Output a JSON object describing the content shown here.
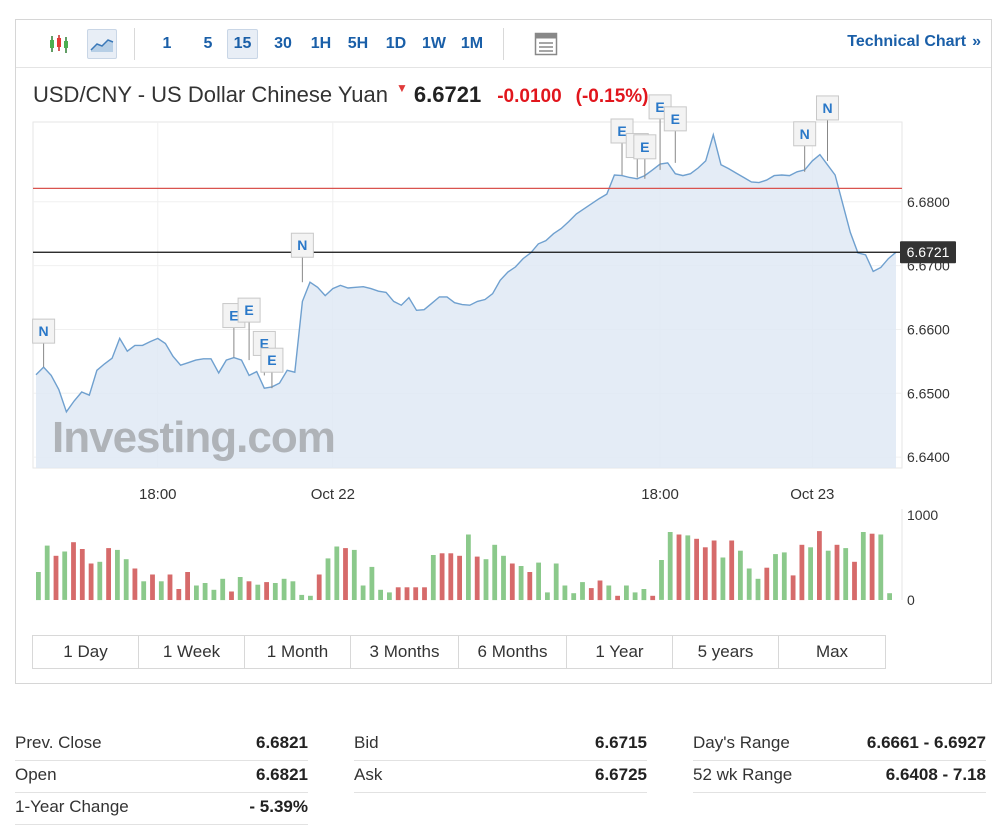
{
  "toolbar": {
    "timeframes": [
      "1",
      "5",
      "15",
      "30",
      "1H",
      "5H",
      "1D",
      "1W",
      "1M"
    ],
    "active_timeframe": "15",
    "technical_chart_label": "Technical Chart",
    "technical_chart_arrow": "»",
    "icons": [
      "candlestick-icon",
      "area-chart-icon",
      "table-view-icon"
    ]
  },
  "quote": {
    "name": "USD/CNY - US Dollar Chinese Yuan",
    "direction_icon": "down-arrow-icon",
    "price": "6.6721",
    "change": "-0.0100",
    "change_pct": "(-0.15%)",
    "colors": {
      "down": "#e1161d",
      "line": "#6fa0cf",
      "fill": "#dfe9f4",
      "prev_close_line": "#d9534f",
      "up_bar": "#8bc98b",
      "down_bar": "#d66a6a"
    }
  },
  "chart_data": {
    "type": "area",
    "y_ticks": [
      "6.6800",
      "6.6700",
      "6.6600",
      "6.6500",
      "6.6400"
    ],
    "ylim": [
      6.6383,
      6.6925
    ],
    "x_ticks": [
      "18:00",
      "Oct 22",
      "18:00",
      "Oct 23"
    ],
    "current_price_label": "6.6721",
    "current_price": 6.6721,
    "reference_line": 6.6821,
    "watermark": "Investing.com",
    "series": [
      {
        "values": [
          6.6529,
          6.6541,
          6.6528,
          6.6506,
          6.6471,
          6.6488,
          6.6502,
          6.6497,
          6.6536,
          6.6546,
          6.6555,
          6.6586,
          6.6566,
          6.6575,
          6.6575,
          6.6581,
          6.6586,
          6.6578,
          6.6558,
          6.6544,
          6.6548,
          6.6552,
          6.6554,
          6.6554,
          6.6532,
          6.6552,
          6.6556,
          6.6552,
          6.6528,
          6.6534,
          6.6508,
          6.651,
          6.6516,
          6.6536,
          6.6533,
          6.6644,
          6.6674,
          6.6666,
          6.6653,
          6.6664,
          6.6669,
          6.6665,
          6.6666,
          6.6667,
          6.6664,
          6.666,
          6.6658,
          6.6644,
          6.6638,
          6.665,
          6.663,
          6.6631,
          6.6641,
          6.6651,
          6.6651,
          6.6642,
          6.6639,
          6.6638,
          6.6644,
          6.6647,
          6.6656,
          6.6677,
          6.669,
          6.6698,
          6.6711,
          6.672,
          6.6734,
          6.6739,
          6.675,
          6.6758,
          6.6769,
          6.6781,
          6.6789,
          6.6797,
          6.6805,
          6.6812,
          6.6842,
          6.6841,
          6.6838,
          6.6836,
          6.6841,
          6.685,
          6.6859,
          6.6861,
          6.6844,
          6.6841,
          6.6844,
          6.6853,
          6.6864,
          6.6905,
          6.6858,
          6.6852,
          6.6845,
          6.6838,
          6.6831,
          6.683,
          6.6834,
          6.6841,
          6.6842,
          6.6841,
          6.6847,
          6.685,
          6.6864,
          6.6874,
          6.6858,
          6.6842,
          6.6797,
          6.6752,
          6.672,
          6.6717,
          6.6691,
          6.6697,
          6.6711,
          6.6721
        ]
      }
    ],
    "event_markers": [
      {
        "label": "N",
        "index": 1,
        "value": 6.6541
      },
      {
        "label": "E",
        "index": 26,
        "value": 6.6556
      },
      {
        "label": "E",
        "index": 28,
        "value": 6.6552
      },
      {
        "label": "E",
        "index": 30,
        "value": 6.6528
      },
      {
        "label": "E",
        "index": 31,
        "value": 6.6508
      },
      {
        "label": "N",
        "index": 35,
        "value": 6.6674
      },
      {
        "label": "E",
        "index": 77,
        "value": 6.6842
      },
      {
        "label": "E",
        "index": 79,
        "value": 6.6838
      },
      {
        "label": "E",
        "index": 80,
        "value": 6.6836
      },
      {
        "label": "E",
        "index": 82,
        "value": 6.685
      },
      {
        "label": "E",
        "index": 84,
        "value": 6.6861
      },
      {
        "label": "N",
        "index": 101,
        "value": 6.6847
      },
      {
        "label": "N",
        "index": 104,
        "value": 6.6864
      }
    ],
    "volume": {
      "y_ticks": [
        "1000",
        "0"
      ],
      "ylim": [
        0,
        1000
      ],
      "bars": [
        {
          "v": 330,
          "up": true
        },
        {
          "v": 640,
          "up": true
        },
        {
          "v": 520,
          "up": false
        },
        {
          "v": 570,
          "up": true
        },
        {
          "v": 680,
          "up": false
        },
        {
          "v": 600,
          "up": false
        },
        {
          "v": 430,
          "up": false
        },
        {
          "v": 450,
          "up": true
        },
        {
          "v": 610,
          "up": false
        },
        {
          "v": 590,
          "up": true
        },
        {
          "v": 480,
          "up": true
        },
        {
          "v": 370,
          "up": false
        },
        {
          "v": 220,
          "up": true
        },
        {
          "v": 300,
          "up": false
        },
        {
          "v": 220,
          "up": true
        },
        {
          "v": 300,
          "up": false
        },
        {
          "v": 130,
          "up": false
        },
        {
          "v": 330,
          "up": false
        },
        {
          "v": 170,
          "up": true
        },
        {
          "v": 200,
          "up": true
        },
        {
          "v": 120,
          "up": true
        },
        {
          "v": 250,
          "up": true
        },
        {
          "v": 100,
          "up": false
        },
        {
          "v": 270,
          "up": true
        },
        {
          "v": 220,
          "up": false
        },
        {
          "v": 180,
          "up": true
        },
        {
          "v": 210,
          "up": false
        },
        {
          "v": 200,
          "up": true
        },
        {
          "v": 250,
          "up": true
        },
        {
          "v": 220,
          "up": true
        },
        {
          "v": 60,
          "up": true
        },
        {
          "v": 50,
          "up": true
        },
        {
          "v": 300,
          "up": false
        },
        {
          "v": 490,
          "up": true
        },
        {
          "v": 630,
          "up": true
        },
        {
          "v": 610,
          "up": false
        },
        {
          "v": 590,
          "up": true
        },
        {
          "v": 170,
          "up": true
        },
        {
          "v": 390,
          "up": true
        },
        {
          "v": 120,
          "up": true
        },
        {
          "v": 90,
          "up": true
        },
        {
          "v": 150,
          "up": false
        },
        {
          "v": 150,
          "up": false
        },
        {
          "v": 150,
          "up": false
        },
        {
          "v": 150,
          "up": false
        },
        {
          "v": 530,
          "up": true
        },
        {
          "v": 550,
          "up": false
        },
        {
          "v": 550,
          "up": false
        },
        {
          "v": 520,
          "up": false
        },
        {
          "v": 770,
          "up": true
        },
        {
          "v": 510,
          "up": false
        },
        {
          "v": 480,
          "up": true
        },
        {
          "v": 650,
          "up": true
        },
        {
          "v": 520,
          "up": true
        },
        {
          "v": 430,
          "up": false
        },
        {
          "v": 400,
          "up": true
        },
        {
          "v": 330,
          "up": false
        },
        {
          "v": 440,
          "up": true
        },
        {
          "v": 90,
          "up": true
        },
        {
          "v": 430,
          "up": true
        },
        {
          "v": 170,
          "up": true
        },
        {
          "v": 80,
          "up": true
        },
        {
          "v": 210,
          "up": true
        },
        {
          "v": 140,
          "up": false
        },
        {
          "v": 230,
          "up": false
        },
        {
          "v": 170,
          "up": true
        },
        {
          "v": 50,
          "up": false
        },
        {
          "v": 170,
          "up": true
        },
        {
          "v": 90,
          "up": true
        },
        {
          "v": 130,
          "up": true
        },
        {
          "v": 50,
          "up": false
        },
        {
          "v": 470,
          "up": true
        },
        {
          "v": 800,
          "up": true
        },
        {
          "v": 770,
          "up": false
        },
        {
          "v": 760,
          "up": true
        },
        {
          "v": 720,
          "up": false
        },
        {
          "v": 620,
          "up": false
        },
        {
          "v": 700,
          "up": false
        },
        {
          "v": 500,
          "up": true
        },
        {
          "v": 700,
          "up": false
        },
        {
          "v": 580,
          "up": true
        },
        {
          "v": 370,
          "up": true
        },
        {
          "v": 250,
          "up": true
        },
        {
          "v": 380,
          "up": false
        },
        {
          "v": 540,
          "up": true
        },
        {
          "v": 560,
          "up": true
        },
        {
          "v": 290,
          "up": false
        },
        {
          "v": 650,
          "up": false
        },
        {
          "v": 620,
          "up": true
        },
        {
          "v": 810,
          "up": false
        },
        {
          "v": 580,
          "up": true
        },
        {
          "v": 650,
          "up": false
        },
        {
          "v": 610,
          "up": true
        },
        {
          "v": 450,
          "up": false
        },
        {
          "v": 800,
          "up": true
        },
        {
          "v": 780,
          "up": false
        },
        {
          "v": 770,
          "up": true
        },
        {
          "v": 80,
          "up": true
        }
      ]
    }
  },
  "ranges": {
    "items": [
      "1 Day",
      "1 Week",
      "1 Month",
      "3 Months",
      "6 Months",
      "1 Year",
      "5 years",
      "Max"
    ]
  },
  "stats": {
    "col1": [
      {
        "label": "Prev. Close",
        "value": "6.6821"
      },
      {
        "label": "Open",
        "value": "6.6821"
      },
      {
        "label": "1-Year Change",
        "value": "- 5.39%"
      }
    ],
    "col2": [
      {
        "label": "Bid",
        "value": "6.6715"
      },
      {
        "label": "Ask",
        "value": "6.6725"
      }
    ],
    "col3": [
      {
        "label": "Day's Range",
        "value": "6.6661 - 6.6927"
      },
      {
        "label": "52 wk Range",
        "value": "6.6408 - 7.18"
      }
    ]
  }
}
